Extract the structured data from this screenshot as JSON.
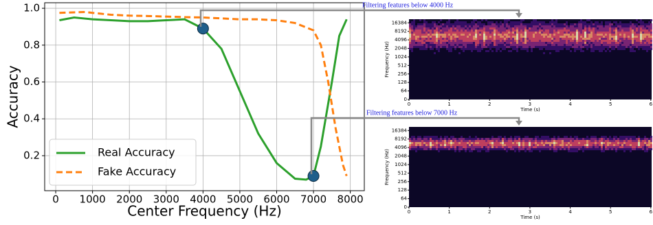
{
  "chart_data": [
    {
      "type": "line",
      "xlabel": "Center Frequency (Hz)",
      "ylabel": "Accuracy",
      "xlim": [
        -300,
        8380
      ],
      "ylim": [
        0.01,
        1.03
      ],
      "xticks": [
        0,
        1000,
        2000,
        3000,
        4000,
        5000,
        6000,
        7000,
        8000
      ],
      "yticks": [
        0.2,
        0.4,
        0.6,
        0.8,
        {
          "value": 1,
          "label": "1.0"
        }
      ],
      "grid": true,
      "legend": "lower left",
      "series": [
        {
          "name": "Real Accuracy",
          "color": "#2ca02c",
          "dashed": false,
          "x": [
            100,
            500,
            1000,
            1500,
            2000,
            2500,
            3000,
            3500,
            4000,
            4500,
            5000,
            5500,
            6000,
            6500,
            6800,
            7000,
            7200,
            7500,
            7700,
            7900
          ],
          "values": [
            0.935,
            0.95,
            0.94,
            0.935,
            0.93,
            0.93,
            0.935,
            0.94,
            0.89,
            0.78,
            0.55,
            0.32,
            0.16,
            0.075,
            0.07,
            0.09,
            0.25,
            0.6,
            0.85,
            0.94
          ]
        },
        {
          "name": "Fake Accuracy",
          "color": "#ff7f0e",
          "dashed": true,
          "x": [
            100,
            500,
            800,
            1000,
            1500,
            2000,
            2500,
            3000,
            3500,
            4000,
            4500,
            5000,
            5500,
            6000,
            6500,
            7000,
            7200,
            7400,
            7600,
            7800,
            7900
          ],
          "values": [
            0.975,
            0.978,
            0.98,
            0.975,
            0.965,
            0.96,
            0.958,
            0.955,
            0.952,
            0.95,
            0.945,
            0.94,
            0.94,
            0.935,
            0.92,
            0.88,
            0.8,
            0.6,
            0.35,
            0.15,
            0.09
          ]
        }
      ],
      "markers": [
        {
          "x": 4000,
          "y": 0.89,
          "color": "#1f5f8b"
        },
        {
          "x": 7000,
          "y": 0.09,
          "color": "#1f5f8b"
        }
      ],
      "annotations": [
        "Filtering features below 4000 Hz",
        "Filtering features below 7000 Hz"
      ]
    },
    {
      "type": "spectrogram",
      "xlabel": "Time (s)",
      "ylabel": "Frequency (Hz)",
      "xlim": [
        0,
        6.02
      ],
      "ylim": [
        0,
        22000
      ],
      "yscale": "log2",
      "xticks": [
        0,
        1,
        2,
        3,
        4,
        5,
        6
      ],
      "yticks": [
        0,
        64,
        128,
        256,
        512,
        1024,
        2048,
        4096,
        8192,
        16384
      ]
    },
    {
      "type": "spectrogram",
      "xlabel": "Time (s)",
      "ylabel": "Frequency (Hz)",
      "xlim": [
        0,
        6.02
      ],
      "ylim": [
        0,
        22000
      ],
      "yscale": "log2",
      "xticks": [
        0,
        1,
        2,
        3,
        4,
        5,
        6
      ],
      "yticks": [
        0,
        64,
        128,
        256,
        512,
        1024,
        2048,
        4096,
        8192,
        16384
      ]
    }
  ]
}
